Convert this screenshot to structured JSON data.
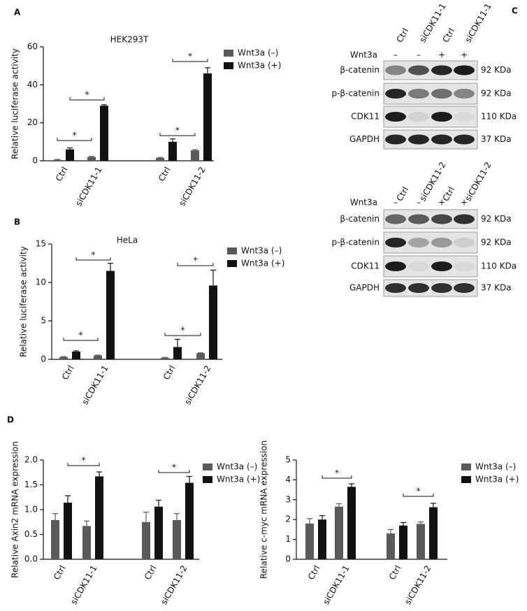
{
  "chart_data": [
    {
      "type": "bar",
      "panel": "A",
      "title": "HEK293T",
      "ylabel": "Relative luciferase activity",
      "categories": [
        "Ctrl",
        "siCDK11-1",
        "Ctrl",
        "siCDK11-2"
      ],
      "series": [
        {
          "name": "Wnt3a (–)",
          "color": "#5a5a5a",
          "values": [
            0.5,
            2,
            1.5,
            5.5
          ],
          "errors": [
            0.2,
            0.3,
            0.3,
            0.4
          ]
        },
        {
          "name": "Wnt3a (+)",
          "color": "#111111",
          "values": [
            6,
            29,
            10,
            46
          ],
          "errors": [
            0.8,
            0.5,
            1.5,
            3
          ]
        }
      ],
      "ylim": [
        0,
        60
      ],
      "yticks": [
        0,
        20,
        40,
        60
      ],
      "annotations": [
        "*",
        "*",
        "*",
        "*"
      ]
    },
    {
      "type": "bar",
      "panel": "B",
      "title": "HeLa",
      "ylabel": "Relative luciferase activity",
      "categories": [
        "Ctrl",
        "siCDK11-1",
        "Ctrl",
        "siCDK11-2"
      ],
      "series": [
        {
          "name": "Wnt3a (–)",
          "color": "#5a5a5a",
          "values": [
            0.3,
            0.5,
            0.2,
            0.8
          ],
          "errors": [
            0.05,
            0.05,
            0.05,
            0.05
          ]
        },
        {
          "name": "Wnt3a (+)",
          "color": "#111111",
          "values": [
            1.0,
            11.5,
            1.6,
            9.6
          ],
          "errors": [
            0.1,
            1,
            1,
            2
          ]
        }
      ],
      "ylim": [
        0,
        15
      ],
      "yticks": [
        0,
        5,
        10,
        15
      ],
      "annotations": [
        "*",
        "*",
        "*",
        "*"
      ]
    },
    {
      "type": "bar",
      "panel": "D",
      "ylabel": "Relative  Axin2 mRNA expression",
      "categories": [
        "Ctrl",
        "siCDK11-1",
        "Ctrl",
        "siCDK11-2"
      ],
      "series": [
        {
          "name": "Wnt3a (–)",
          "color": "#5a5a5a",
          "values": [
            0.79,
            0.67,
            0.75,
            0.79
          ],
          "errors": [
            0.13,
            0.1,
            0.2,
            0.13
          ]
        },
        {
          "name": "Wnt3a (+)",
          "color": "#111111",
          "values": [
            1.14,
            1.67,
            1.06,
            1.54
          ],
          "errors": [
            0.14,
            0.09,
            0.13,
            0.13
          ]
        }
      ],
      "ylim": [
        0,
        2
      ],
      "yticks": [
        {
          "value": 0,
          "label": "0.0"
        },
        0.5,
        {
          "value": 1,
          "label": "1.0"
        },
        1.5,
        {
          "value": 2,
          "label": "2.0"
        }
      ],
      "annotations": [
        "*",
        "*"
      ]
    },
    {
      "type": "bar",
      "ylabel": "Relative  c-myc mRNA expression",
      "categories": [
        "Ctrl",
        "siCDK11-1",
        "Ctrl",
        "siCDK11-2"
      ],
      "series": [
        {
          "name": "Wnt3a (–)",
          "color": "#5a5a5a",
          "values": [
            1.8,
            2.65,
            1.3,
            1.78
          ],
          "errors": [
            0.25,
            0.15,
            0.2,
            0.1
          ]
        },
        {
          "name": "Wnt3a (+)",
          "color": "#111111",
          "values": [
            2.0,
            3.65,
            1.7,
            2.62
          ],
          "errors": [
            0.2,
            0.15,
            0.15,
            0.2
          ]
        }
      ],
      "ylim": [
        0,
        5
      ],
      "yticks": [
        0,
        1,
        2,
        3,
        4,
        5
      ],
      "annotations": [
        "*",
        "*"
      ]
    }
  ],
  "blot_panel": "C",
  "blots": [
    {
      "lanes": [
        "Ctrl",
        "siCDK11-1",
        "Ctrl",
        "siCDK11-1"
      ],
      "treatment_label": "Wnt3a",
      "treatment": [
        "–",
        "–",
        "+",
        "+"
      ],
      "rows": [
        {
          "name": "β-catenin",
          "size": "92 KDa"
        },
        {
          "name": "p-β-catenin",
          "size": "92 KDa"
        },
        {
          "name": "CDK11",
          "size": "110 KDa"
        },
        {
          "name": "GAPDH",
          "size": "37 KDa"
        }
      ]
    },
    {
      "lanes": [
        "Ctrl",
        "siCDK11-2",
        "Ctrl",
        "siCDK11-2"
      ],
      "treatment_label": "Wnt3a",
      "treatment": [
        "–",
        "–",
        "+",
        "+"
      ],
      "rows": [
        {
          "name": "β-catenin",
          "size": "92 KDa"
        },
        {
          "name": "p-β-catenin",
          "size": "92 KDa"
        },
        {
          "name": "CDK11",
          "size": "110 KDa"
        },
        {
          "name": "GAPDH",
          "size": "37 KDa"
        }
      ]
    }
  ]
}
